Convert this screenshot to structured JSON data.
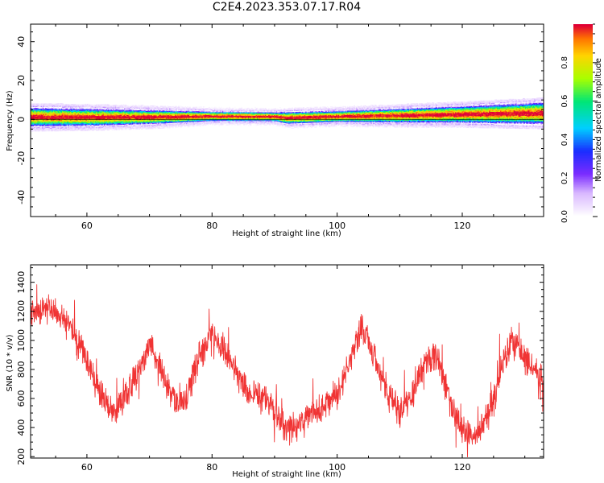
{
  "figure": {
    "title": "C2E4.2023.353.07.17.R04"
  },
  "colors": {
    "background": "#ffffff",
    "axis": "#000000",
    "snr_line": "#f03434",
    "spectrum_low": "#e5cbff",
    "spectrum_mid": "#00c6ff",
    "spectrum_high": "#e00034"
  },
  "chart_data": [
    {
      "type": "heatmap",
      "title": "",
      "xlabel": "Height of straight line (km)",
      "ylabel": "Frequency (Hz)",
      "xlim": [
        51,
        133
      ],
      "ylim": [
        -50,
        49
      ],
      "xticks": [
        60,
        80,
        100,
        120
      ],
      "xtick_labels": [
        "60",
        "80",
        "100",
        "120"
      ],
      "yticks": [
        40,
        20,
        0,
        -20,
        -40
      ],
      "ytick_labels": [
        "40",
        "20",
        "0",
        "-20",
        "-40"
      ],
      "colorbar": {
        "label": "Normalized spectral amplitude",
        "range": [
          0,
          1
        ],
        "ticks": [
          0.0,
          0.2,
          0.4,
          0.6,
          0.8
        ],
        "tick_labels": [
          "0.0",
          "0.2",
          "0.4",
          "0.6",
          "0.8"
        ],
        "colormap": "rainbow"
      },
      "center_frequency": [
        [
          51,
          1.2
        ],
        [
          60,
          1.1
        ],
        [
          70,
          1.2
        ],
        [
          80,
          1.6
        ],
        [
          90,
          1.4
        ],
        [
          92,
          0.8
        ],
        [
          100,
          1.5
        ],
        [
          110,
          2.0
        ],
        [
          120,
          2.6
        ],
        [
          133,
          3.2
        ]
      ],
      "band_half_width": [
        [
          51,
          5.0
        ],
        [
          60,
          4.6
        ],
        [
          70,
          3.8
        ],
        [
          80,
          2.6
        ],
        [
          90,
          2.5
        ],
        [
          92,
          3.2
        ],
        [
          100,
          3.0
        ],
        [
          110,
          3.8
        ],
        [
          120,
          4.5
        ],
        [
          133,
          5.8
        ]
      ]
    },
    {
      "type": "line",
      "title": "",
      "xlabel": "Height of straight line (km)",
      "ylabel": "SNR (10 * v/v)",
      "xlim": [
        51,
        133
      ],
      "ylim": [
        190,
        1520
      ],
      "xticks": [
        60,
        80,
        100,
        120
      ],
      "xtick_labels": [
        "60",
        "80",
        "100",
        "120"
      ],
      "yticks": [
        1400,
        1200,
        1000,
        800,
        600,
        400,
        200
      ],
      "ytick_labels": [
        "1400",
        "1200",
        "1000",
        "800",
        "600",
        "400",
        "200"
      ],
      "series": [
        {
          "x": [
            51,
            53,
            56,
            59,
            62,
            64,
            66,
            68,
            70,
            72,
            74,
            76,
            78,
            80,
            82,
            84,
            86,
            88,
            90,
            92,
            94,
            96,
            98,
            100,
            102,
            104,
            106,
            108,
            110,
            112,
            114,
            116,
            118,
            120,
            122,
            124,
            126,
            128,
            130,
            133
          ],
          "y": [
            1180,
            1230,
            1160,
            960,
            650,
            500,
            610,
            760,
            970,
            780,
            580,
            600,
            880,
            1060,
            940,
            750,
            640,
            610,
            520,
            390,
            420,
            500,
            560,
            610,
            850,
            1090,
            880,
            620,
            500,
            620,
            860,
            900,
            590,
            390,
            330,
            470,
            760,
            1010,
            880,
            720
          ]
        }
      ]
    }
  ]
}
